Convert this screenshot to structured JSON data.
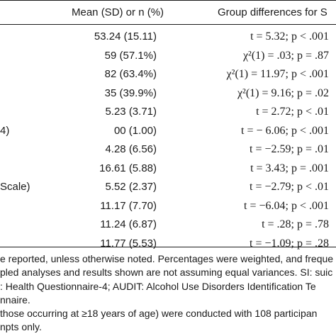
{
  "header": {
    "col_mean": "Mean (SD) or n (%)",
    "col_diff": "Group differences for S"
  },
  "rows": [
    {
      "label": "",
      "mean": "53.24 (15.11)",
      "test": "t = 5.32; p < .001"
    },
    {
      "label": "",
      "mean": "59 (57.1%)",
      "test": "χ²(1) = .03; p = .87"
    },
    {
      "label": "",
      "mean": "82 (63.4%)",
      "test": "χ²(1) = 11.97; p < .001"
    },
    {
      "label": "",
      "mean": "35 (39.9%)",
      "test": "χ²(1) = 9.16; p = .02"
    },
    {
      "label": "",
      "mean": "5.23 (3.71)",
      "test": "t = 2.72; p < .01"
    },
    {
      "label": "4)",
      "mean": "00 (1.00)",
      "test": "t = − 6.06; p < .001"
    },
    {
      "label": "",
      "mean": "4.28 (6.56)",
      "test": "t = −2.59; p = .01"
    },
    {
      "label": "",
      "mean": "16.61 (5.88)",
      "test": "t = 3.43; p = .001"
    },
    {
      "label": "Scale)",
      "mean": "5.52 (2.37)",
      "test": "t = −2.79; p < .01"
    },
    {
      "label": "",
      "mean": "11.17 (7.70)",
      "test": "t = −6.04; p < .001"
    },
    {
      "label": "",
      "mean": "11.24 (6.87)",
      "test": "t = .28; p = .78"
    },
    {
      "label": "",
      "mean": "11.77 (5.53)",
      "test": "t = −1.09; p = .28"
    }
  ],
  "notes": [
    "e reported, unless otherwise noted. Percentages were weighted, and freque",
    "pled analyses and results shown are not assuming equal variances. SI: suic",
    ": Health Questionnaire-4; AUDIT: Alcohol Use Disorders Identification Te",
    "nnaire.",
    " those occurring at ≥18 years of age) were conducted with 108 participan",
    "npts only."
  ]
}
